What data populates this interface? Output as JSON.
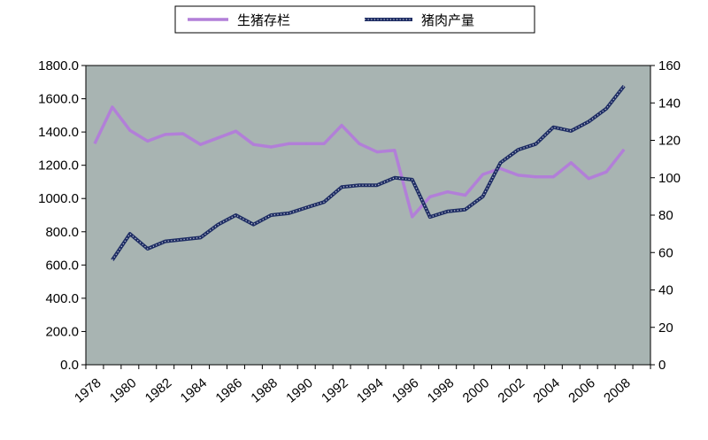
{
  "chart_data": {
    "type": "line",
    "title": "",
    "xlabel": "",
    "ylabel": "",
    "y2label": "",
    "legend_position": "top",
    "grid": false,
    "background_color": "#a8b4b2",
    "x_tick_labels": [
      "1978",
      "1980",
      "1982",
      "1984",
      "1986",
      "1988",
      "1990",
      "1992",
      "1994",
      "1996",
      "1998",
      "2000",
      "2002",
      "2004",
      "2006",
      "2008"
    ],
    "ylim": [
      0,
      1800
    ],
    "y_tick_labels": [
      "0.0",
      "200.0",
      "400.0",
      "600.0",
      "800.0",
      "1000.0",
      "1200.0",
      "1400.0",
      "1600.0",
      "1800.0"
    ],
    "y2lim": [
      0,
      160
    ],
    "y2_tick_labels": [
      "0",
      "20",
      "40",
      "60",
      "80",
      "100",
      "120",
      "140",
      "160"
    ],
    "series": [
      {
        "name": "生猪存栏",
        "axis": "left",
        "color": "#b27fd8",
        "x": [
          1978,
          1979,
          1980,
          1981,
          1982,
          1983,
          1984,
          1985,
          1986,
          1987,
          1988,
          1989,
          1990,
          1991,
          1992,
          1993,
          1994,
          1995,
          1996,
          1997,
          1998,
          1999,
          2000,
          2001,
          2002,
          2003,
          2004,
          2005,
          2006,
          2007,
          2008,
          2009
        ],
        "values": [
          1330,
          1550,
          1410,
          1345,
          1385,
          1390,
          1325,
          1365,
          1405,
          1325,
          1310,
          1330,
          1330,
          1330,
          1440,
          1330,
          1280,
          1290,
          890,
          1010,
          1040,
          1020,
          1145,
          1180,
          1140,
          1130,
          1130,
          1215,
          1120,
          1160,
          1295,
          null
        ]
      },
      {
        "name": "猪肉产量",
        "axis": "right",
        "color": "#1e2d64",
        "x": [
          1978,
          1979,
          1980,
          1981,
          1982,
          1983,
          1984,
          1985,
          1986,
          1987,
          1988,
          1989,
          1990,
          1991,
          1992,
          1993,
          1994,
          1995,
          1996,
          1997,
          1998,
          1999,
          2000,
          2001,
          2002,
          2003,
          2004,
          2005,
          2006,
          2007,
          2008,
          2009
        ],
        "values": [
          null,
          56,
          70,
          62,
          66,
          67,
          68,
          75,
          80,
          75,
          80,
          81,
          84,
          87,
          95,
          96,
          96,
          100,
          99,
          79,
          82,
          83,
          90,
          108,
          115,
          118,
          127,
          125,
          130,
          137,
          149,
          null
        ]
      }
    ]
  }
}
